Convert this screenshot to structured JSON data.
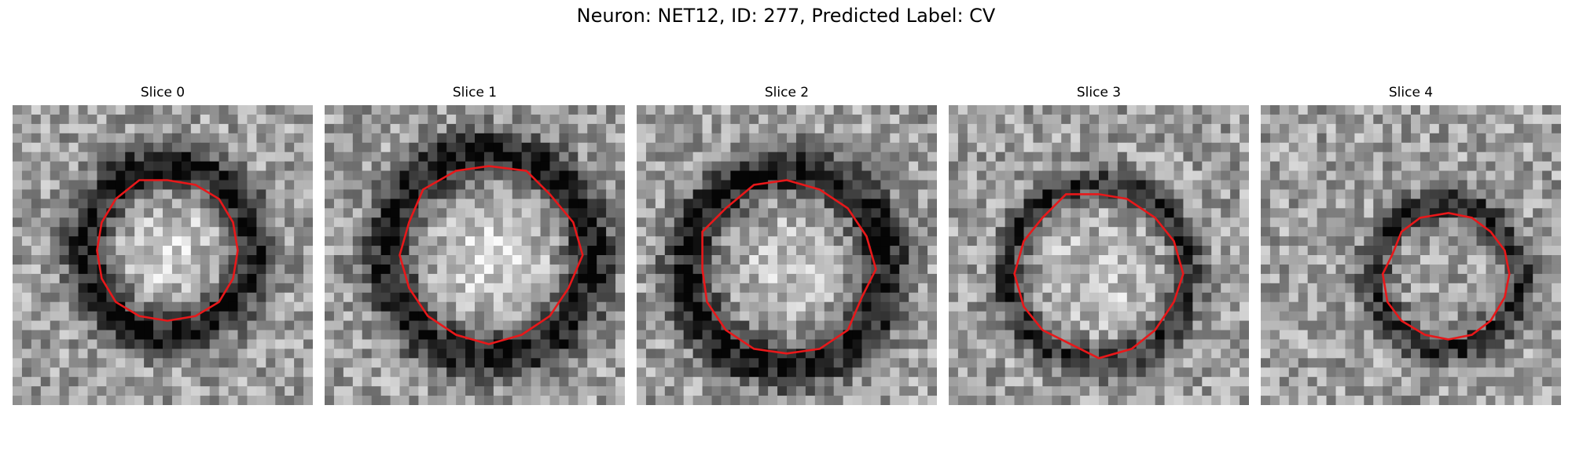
{
  "figure": {
    "title": "Neuron: NET12, ID: 277, Predicted Label: CV"
  },
  "panels": [
    {
      "title": "Slice 0",
      "seed": 101,
      "center": [
        0.52,
        0.48
      ],
      "inner_radius": 0.2,
      "ring_radius": 0.28,
      "ring_dark": 0.55,
      "inner_bright": 0.35,
      "contour_color": "#e8181a"
    },
    {
      "title": "Slice 1",
      "seed": 202,
      "center": [
        0.55,
        0.5
      ],
      "inner_radius": 0.25,
      "ring_radius": 0.34,
      "ring_dark": 0.55,
      "inner_bright": 0.35,
      "contour_color": "#e8181a"
    },
    {
      "title": "Slice 2",
      "seed": 303,
      "center": [
        0.5,
        0.54
      ],
      "inner_radius": 0.24,
      "ring_radius": 0.33,
      "ring_dark": 0.55,
      "inner_bright": 0.2,
      "contour_color": "#e8181a"
    },
    {
      "title": "Slice 3",
      "seed": 404,
      "center": [
        0.5,
        0.56
      ],
      "inner_radius": 0.24,
      "ring_radius": 0.3,
      "ring_dark": 0.45,
      "inner_bright": 0.25,
      "contour_color": "#e8181a"
    },
    {
      "title": "Slice 4",
      "seed": 505,
      "center": [
        0.62,
        0.57
      ],
      "inner_radius": 0.18,
      "ring_radius": 0.24,
      "ring_dark": 0.45,
      "inner_bright": 0.0,
      "contour_color": "#e8181a"
    }
  ]
}
